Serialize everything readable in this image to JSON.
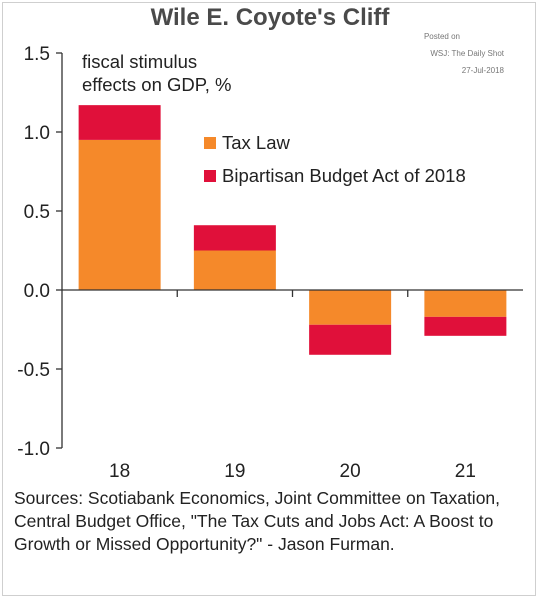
{
  "header": {
    "title": "Wile E. Coyote's Cliff",
    "posted_on": "Posted on",
    "posted_source": "WSJ: The Daily Shot",
    "posted_date": "27-Jul-2018"
  },
  "chart_data": {
    "type": "bar",
    "stacked": true,
    "annotation": "fiscal stimulus\neffects on GDP, %",
    "categories": [
      "18",
      "19",
      "20",
      "21"
    ],
    "series": [
      {
        "name": "Tax Law",
        "color": "#f5892a",
        "values": [
          0.95,
          0.25,
          -0.22,
          -0.17
        ]
      },
      {
        "name": "Bipartisan Budget Act of 2018",
        "color": "#e0103a",
        "values": [
          0.22,
          0.16,
          -0.19,
          -0.12
        ]
      }
    ],
    "ylim": [
      -1.0,
      1.5
    ],
    "yticks": [
      "-1.0",
      "-0.5",
      "0.0",
      "0.5",
      "1.0",
      "1.5"
    ],
    "grid": false,
    "legend_position": "top-right"
  },
  "footer": {
    "sources": "Sources: Scotiabank Economics, Joint Committee on Taxation, Central Budget Office, \"The Tax Cuts and Jobs Act: A Boost to Growth or Missed Opportunity?\" - Jason Furman."
  }
}
